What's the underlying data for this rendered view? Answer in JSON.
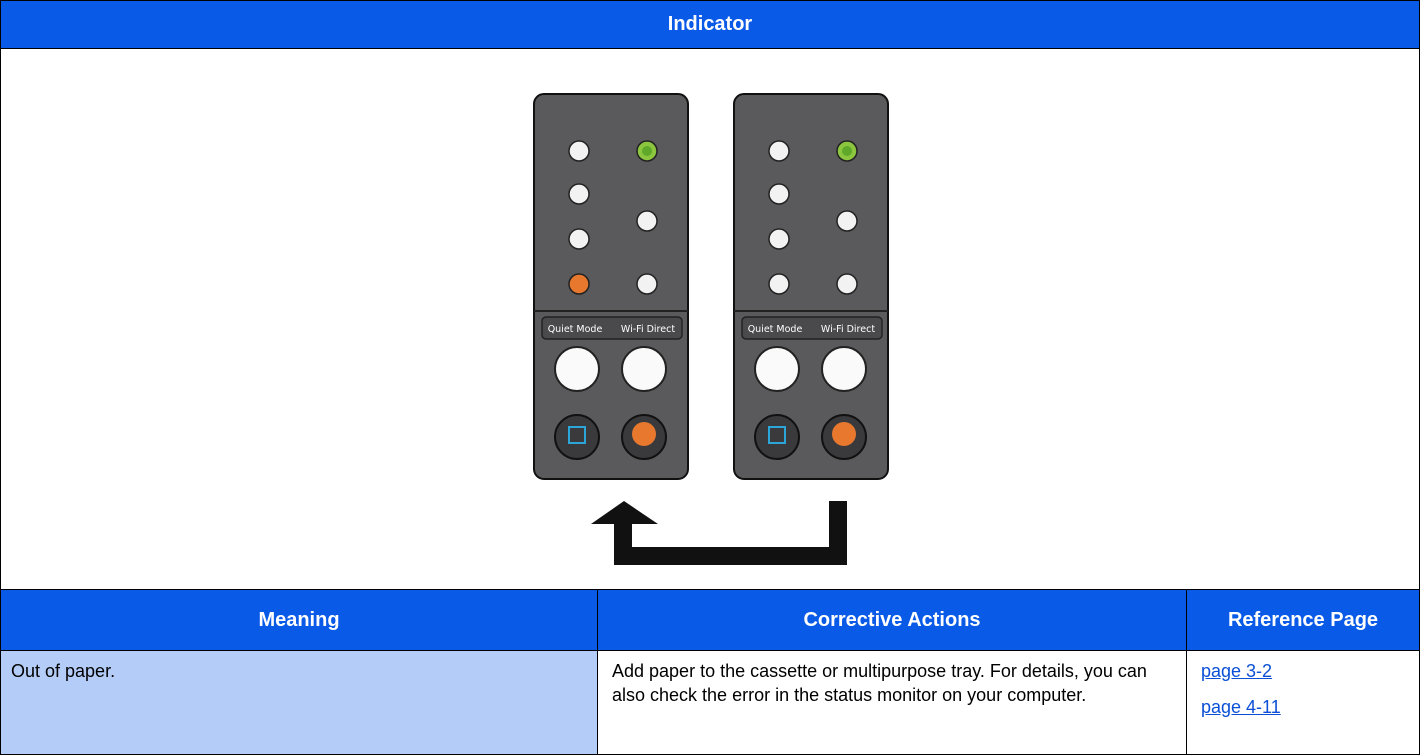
{
  "indicator": {
    "title": "Indicator",
    "panels": [
      {
        "labels": [
          "Quiet Mode",
          "Wi-Fi Direct"
        ]
      },
      {
        "labels": [
          "Quiet Mode",
          "Wi-Fi Direct"
        ]
      }
    ]
  },
  "table": {
    "headers": [
      "Meaning",
      "Corrective Actions",
      "Reference Page"
    ],
    "rows": [
      {
        "meaning": "Out of paper.",
        "action": "Add paper to the cassette or multipurpose tray. For details, you can also check the error in the status monitor on your computer.",
        "references": [
          "page 3-2",
          "page 4-11"
        ]
      }
    ]
  }
}
